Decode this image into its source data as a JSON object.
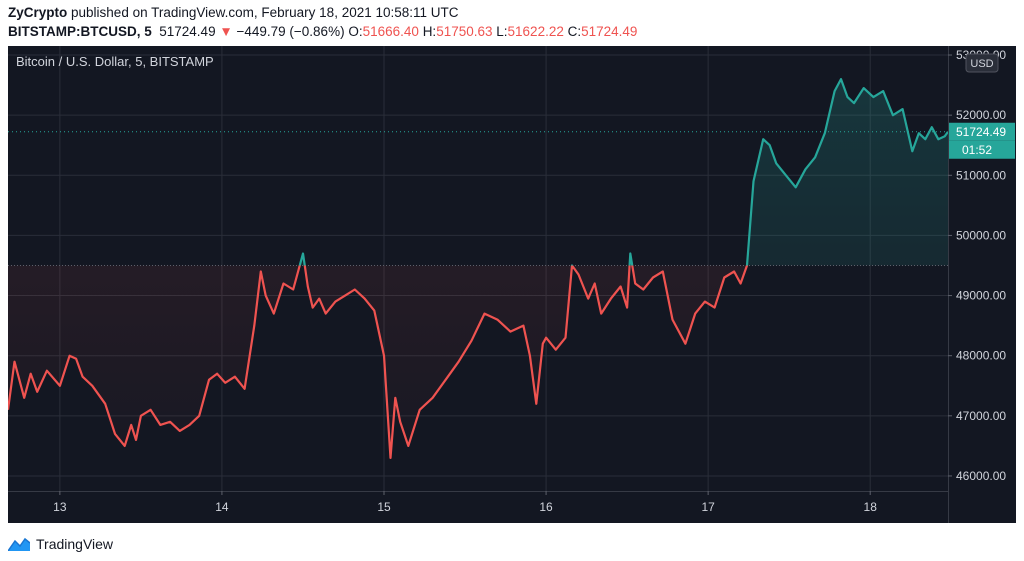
{
  "header": {
    "publisher": "ZyCrypto",
    "published_text": "published on TradingView.com, February 18, 2021 10:58:11 UTC",
    "symbol": "BITSTAMP:BTCUSD, 5",
    "last": "51724.49",
    "change": "−449.79 (−0.86%)",
    "o_label": "O:",
    "o_value": "51666.40",
    "h_label": "H:",
    "h_value": "51750.63",
    "l_label": "L:",
    "l_value": "51622.22",
    "c_label": "C:",
    "c_value": "51724.49"
  },
  "colors": {
    "background": "#131722",
    "grid": "#2a2e39",
    "up": "#26a69a",
    "down": "#ef5350",
    "axis_text": "#d1d4dc",
    "change_arrow": "#ef5350"
  },
  "chart_data": {
    "type": "line",
    "title": "Bitcoin / U.S. Dollar, 5, BITSTAMP",
    "currency_label": "USD",
    "price_label": "51724.49",
    "countdown_label": "01:52",
    "baseline": 49500,
    "ylim": [
      45750,
      53150
    ],
    "xlim": [
      12.68,
      18.48
    ],
    "grid": true,
    "x_ticks": [
      {
        "value": 13,
        "label": "13"
      },
      {
        "value": 14,
        "label": "14"
      },
      {
        "value": 15,
        "label": "15"
      },
      {
        "value": 16,
        "label": "16"
      },
      {
        "value": 17,
        "label": "17"
      },
      {
        "value": 18,
        "label": "18"
      }
    ],
    "y_ticks": [
      {
        "value": 46000,
        "label": "46000.00"
      },
      {
        "value": 47000,
        "label": "47000.00"
      },
      {
        "value": 48000,
        "label": "48000.00"
      },
      {
        "value": 49000,
        "label": "49000.00"
      },
      {
        "value": 50000,
        "label": "50000.00"
      },
      {
        "value": 51000,
        "label": "51000.00"
      },
      {
        "value": 52000,
        "label": "52000.00"
      },
      {
        "value": 53000,
        "label": "53000.00"
      }
    ],
    "series": [
      {
        "x": [
          12.68,
          12.72,
          12.78,
          12.82,
          12.86,
          12.92,
          13.0,
          13.06,
          13.1,
          13.14,
          13.2,
          13.28,
          13.34,
          13.4,
          13.44,
          13.47,
          13.5,
          13.56,
          13.62,
          13.68,
          13.74,
          13.8,
          13.86,
          13.92,
          13.97,
          14.02,
          14.08,
          14.14,
          14.2,
          14.24,
          14.27,
          14.32,
          14.38,
          14.44,
          14.5,
          14.53,
          14.56,
          14.6,
          14.64,
          14.7,
          14.76,
          14.82,
          14.88,
          14.94,
          15.0,
          15.04,
          15.07,
          15.1,
          15.15,
          15.22,
          15.3,
          15.38,
          15.46,
          15.54,
          15.62,
          15.7,
          15.78,
          15.86,
          15.9,
          15.94,
          15.98,
          16.0,
          16.06,
          16.12,
          16.16,
          16.2,
          16.26,
          16.3,
          16.34,
          16.4,
          16.46,
          16.5,
          16.52,
          16.55,
          16.6,
          16.66,
          16.72,
          16.78,
          16.86,
          16.92,
          16.98,
          17.04,
          17.1,
          17.16,
          17.2,
          17.24,
          17.28,
          17.34,
          17.38,
          17.42,
          17.48,
          17.54,
          17.6,
          17.66,
          17.72,
          17.78,
          17.82,
          17.86,
          17.9,
          17.96,
          18.02,
          18.08,
          18.14,
          18.2,
          18.26,
          18.3,
          18.34,
          18.38,
          18.42,
          18.46,
          18.48
        ],
        "y": [
          47100,
          47900,
          47300,
          47700,
          47400,
          47750,
          47500,
          48000,
          47950,
          47650,
          47500,
          47200,
          46700,
          46500,
          46850,
          46600,
          47000,
          47100,
          46850,
          46900,
          46750,
          46850,
          47000,
          47600,
          47700,
          47550,
          47650,
          47450,
          48500,
          49400,
          49000,
          48700,
          49200,
          49100,
          49700,
          49150,
          48800,
          48950,
          48700,
          48900,
          49000,
          49100,
          48950,
          48750,
          48000,
          46300,
          47300,
          46900,
          46500,
          47100,
          47300,
          47600,
          47900,
          48250,
          48700,
          48600,
          48400,
          48500,
          48000,
          47200,
          48200,
          48300,
          48100,
          48300,
          49500,
          49350,
          48950,
          49200,
          48700,
          48950,
          49150,
          48800,
          49700,
          49200,
          49100,
          49300,
          49400,
          48600,
          48200,
          48700,
          48900,
          48800,
          49300,
          49400,
          49200,
          49500,
          50900,
          51600,
          51500,
          51200,
          51000,
          50800,
          51100,
          51300,
          51700,
          52400,
          52600,
          52300,
          52200,
          52450,
          52300,
          52400,
          52000,
          52100,
          51400,
          51700,
          51600,
          51800,
          51600,
          51650,
          51724
        ]
      }
    ]
  },
  "footer": {
    "brand": "TradingView",
    "logo_icon": "tradingview-logo-icon"
  }
}
